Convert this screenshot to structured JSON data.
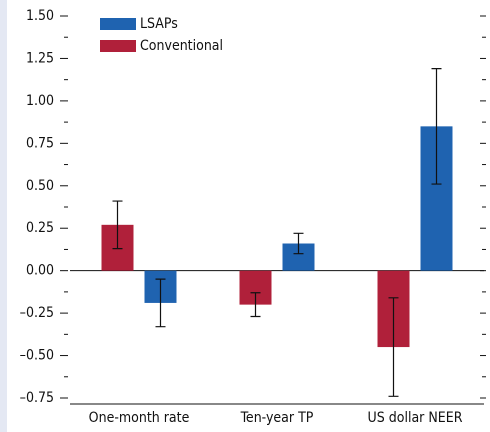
{
  "chart_data": {
    "type": "bar",
    "categories": [
      "One-month rate",
      "Ten-year TP",
      "US dollar NEER"
    ],
    "series": [
      {
        "name": "Conventional",
        "color": "#b0203a",
        "values": [
          0.27,
          -0.2,
          -0.45
        ],
        "errors": [
          0.14,
          0.07,
          0.29
        ]
      },
      {
        "name": "LSAPs",
        "color": "#1f63b0",
        "values": [
          -0.19,
          0.16,
          0.85
        ],
        "errors": [
          0.14,
          0.06,
          0.34
        ]
      }
    ],
    "ylim": [
      -0.75,
      1.5
    ],
    "yticks": [
      {
        "value": 1.5,
        "label": "1.50"
      },
      1.25,
      {
        "value": 1,
        "label": "1.00"
      },
      0.75,
      {
        "value": 0.5,
        "label": "0.50"
      },
      0.25,
      {
        "value": 0,
        "label": "0.00"
      },
      {
        "value": -0.25,
        "label": "–0.25"
      },
      {
        "value": -0.5,
        "label": "–0.50"
      },
      {
        "value": -0.75,
        "label": "–0.75"
      }
    ],
    "legend": "top-left"
  }
}
